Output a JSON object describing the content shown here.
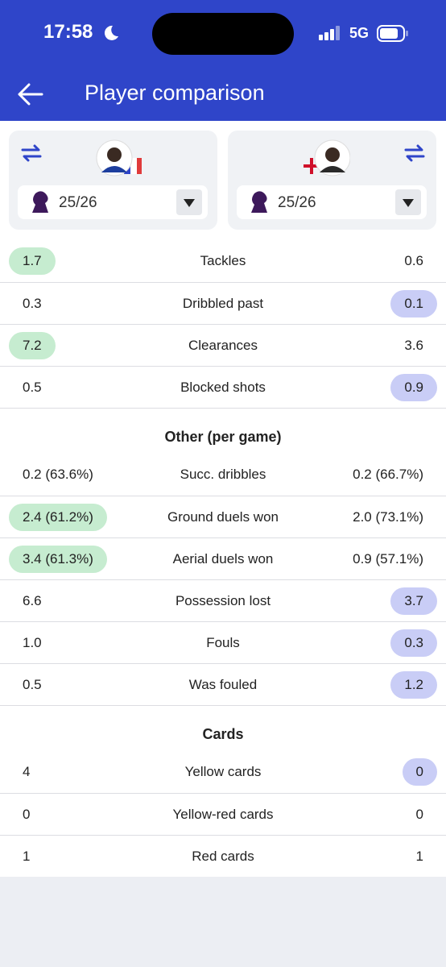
{
  "status_bar": {
    "time": "17:58",
    "network": "5G"
  },
  "header": {
    "title": "Player comparison"
  },
  "players": [
    {
      "season": "25/26"
    },
    {
      "season": "25/26"
    }
  ],
  "sections": [
    {
      "rows": [
        {
          "left": "1.7",
          "label": "Tackles",
          "right": "0.6",
          "best": "left"
        },
        {
          "left": "0.3",
          "label": "Dribbled past",
          "right": "0.1",
          "best": "right"
        },
        {
          "left": "7.2",
          "label": "Clearances",
          "right": "3.6",
          "best": "left"
        },
        {
          "left": "0.5",
          "label": "Blocked shots",
          "right": "0.9",
          "best": "right"
        }
      ]
    },
    {
      "title": "Other (per game)",
      "rows": [
        {
          "left": "0.2 (63.6%)",
          "label": "Succ. dribbles",
          "right": "0.2 (66.7%)"
        },
        {
          "left": "2.4 (61.2%)",
          "label": "Ground duels won",
          "right": "2.0 (73.1%)",
          "best": "left"
        },
        {
          "left": "3.4 (61.3%)",
          "label": "Aerial duels won",
          "right": "0.9 (57.1%)",
          "best": "left"
        },
        {
          "left": "6.6",
          "label": "Possession lost",
          "right": "3.7",
          "best": "right"
        },
        {
          "left": "1.0",
          "label": "Fouls",
          "right": "0.3",
          "best": "right"
        },
        {
          "left": "0.5",
          "label": "Was fouled",
          "right": "1.2",
          "best": "right"
        }
      ]
    },
    {
      "title": "Cards",
      "rows": [
        {
          "left": "4",
          "label": "Yellow cards",
          "right": "0",
          "best": "right"
        },
        {
          "left": "0",
          "label": "Yellow-red cards",
          "right": "0"
        },
        {
          "left": "1",
          "label": "Red cards",
          "right": "1"
        }
      ]
    }
  ]
}
